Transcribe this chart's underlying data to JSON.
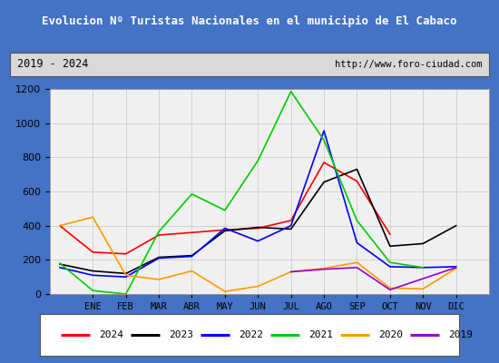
{
  "title": "Evolucion Nº Turistas Nacionales en el municipio de El Cabaco",
  "subtitle_left": "2019 - 2024",
  "subtitle_right": "http://www.foro-ciudad.com",
  "months": [
    "ENE",
    "FEB",
    "MAR",
    "ABR",
    "MAY",
    "JUN",
    "JUL",
    "AGO",
    "SEP",
    "OCT",
    "NOV",
    "DIC"
  ],
  "colors": {
    "2024": "#ff0000",
    "2023": "#000000",
    "2022": "#0000ff",
    "2021": "#00cc00",
    "2020": "#ff9900",
    "2019": "#9900cc"
  },
  "x_pos_2024": [
    0,
    1,
    2,
    3,
    4,
    5,
    6,
    7,
    8,
    9,
    10
  ],
  "y_2024": [
    400,
    245,
    235,
    345,
    360,
    375,
    385,
    430,
    770,
    660,
    350
  ],
  "x_pos_2023": [
    0,
    1,
    2,
    3,
    4,
    5,
    6,
    7,
    8,
    9,
    10,
    11,
    12
  ],
  "y_2023": [
    175,
    135,
    120,
    215,
    225,
    370,
    390,
    380,
    655,
    730,
    280,
    295,
    400
  ],
  "x_pos_2022": [
    0,
    1,
    2,
    3,
    4,
    5,
    6,
    7,
    8,
    9,
    10,
    11,
    12
  ],
  "y_2022": [
    155,
    110,
    100,
    210,
    220,
    385,
    310,
    400,
    955,
    300,
    160,
    155,
    160
  ],
  "x_pos_2021": [
    0,
    1,
    2,
    3,
    4,
    5,
    6,
    7,
    8,
    9,
    10,
    11
  ],
  "y_2021": [
    180,
    20,
    0,
    365,
    585,
    490,
    780,
    1185,
    900,
    430,
    185,
    155
  ],
  "x_pos_2020": [
    0,
    1,
    2,
    3,
    4,
    5,
    6,
    7,
    8,
    9,
    10,
    11,
    12
  ],
  "y_2020": [
    400,
    450,
    110,
    85,
    135,
    15,
    45,
    130,
    150,
    185,
    35,
    30,
    150
  ],
  "x_pos_2019": [
    7,
    8,
    9,
    10,
    11,
    12
  ],
  "y_2019": [
    130,
    145,
    155,
    25,
    90,
    155
  ],
  "ylim": [
    0,
    1200
  ],
  "yticks": [
    0,
    200,
    400,
    600,
    800,
    1000,
    1200
  ],
  "title_bg": "#4472c4",
  "title_color": "#ffffff",
  "inner_bg": "#f0f0f0",
  "grid_color": "#cccccc",
  "subtitle_bg": "#d9d9d9"
}
